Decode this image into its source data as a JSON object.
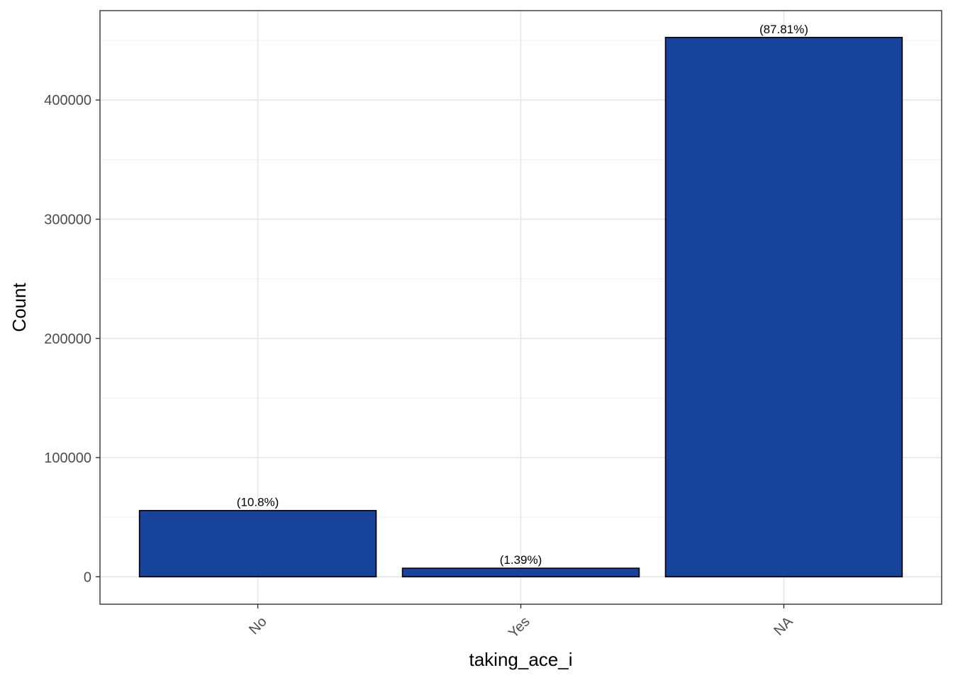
{
  "chart_data": {
    "type": "bar",
    "categories": [
      "No",
      "Yes",
      "NA"
    ],
    "values": [
      55600,
      7200,
      452500
    ],
    "labels": [
      "(10.8%)",
      "(1.39%)",
      "(87.81%)"
    ],
    "xlabel": "taking_ace_i",
    "ylabel": "Count",
    "ylim": [
      -23000,
      475000
    ],
    "yticks": [
      0,
      100000,
      200000,
      300000,
      400000
    ],
    "ytick_labels": [
      "0",
      "100000",
      "200000",
      "300000",
      "400000"
    ],
    "grid": true,
    "legend": "none",
    "bar_color": "#17449A",
    "bar_edge_color": "#000000",
    "grid_color": "#e6e6e6",
    "x_tick_rotation": -45
  }
}
